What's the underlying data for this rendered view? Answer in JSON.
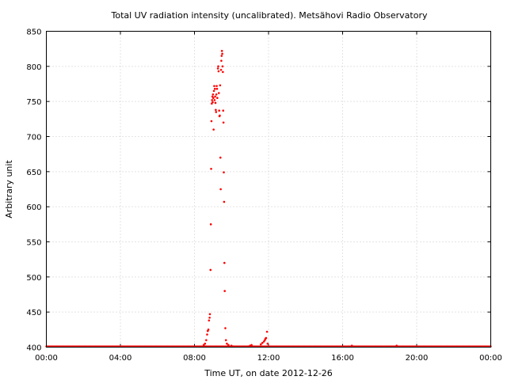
{
  "chart_data": {
    "type": "scatter",
    "title": "Total UV radiation intensity (uncalibrated). Metsähovi Radio Observatory",
    "xlabel": "Time UT, on date 2012-12-26",
    "ylabel": "Arbitrary unit",
    "xlim": [
      "00:00",
      "24:00"
    ],
    "ylim": [
      400,
      850
    ],
    "grid": true,
    "color": "#ff0000",
    "x_ticks": [
      "00:00",
      "04:00",
      "08:00",
      "12:00",
      "16:00",
      "20:00",
      "00:00"
    ],
    "y_ticks": [
      "400",
      "450",
      "500",
      "550",
      "600",
      "650",
      "700",
      "750",
      "800",
      "850"
    ],
    "series": [
      {
        "baseline_value": 401,
        "baseline_x_range": [
          "00:00",
          "24:00"
        ],
        "points": [
          [
            "08:30",
            403
          ],
          [
            "08:34",
            405
          ],
          [
            "08:38",
            410
          ],
          [
            "08:41",
            418
          ],
          [
            "08:43",
            423
          ],
          [
            "08:45",
            425
          ],
          [
            "08:47",
            438
          ],
          [
            "08:49",
            442
          ],
          [
            "08:50",
            447
          ],
          [
            "08:52",
            510
          ],
          [
            "08:53",
            575
          ],
          [
            "08:54",
            654
          ],
          [
            "08:55",
            722
          ],
          [
            "08:56",
            747
          ],
          [
            "08:57",
            752
          ],
          [
            "08:58",
            757
          ],
          [
            "08:59",
            749
          ],
          [
            "09:00",
            760
          ],
          [
            "09:01",
            755
          ],
          [
            "09:02",
            710
          ],
          [
            "09:03",
            765
          ],
          [
            "09:04",
            772
          ],
          [
            "09:05",
            752
          ],
          [
            "09:06",
            768
          ],
          [
            "09:07",
            757
          ],
          [
            "09:08",
            748
          ],
          [
            "09:09",
            738
          ],
          [
            "09:10",
            735
          ],
          [
            "09:11",
            760
          ],
          [
            "09:12",
            772
          ],
          [
            "09:13",
            768
          ],
          [
            "09:14",
            755
          ],
          [
            "09:16",
            797
          ],
          [
            "09:17",
            800
          ],
          [
            "09:18",
            793
          ],
          [
            "09:19",
            762
          ],
          [
            "09:20",
            737
          ],
          [
            "09:21",
            729
          ],
          [
            "09:22",
            730
          ],
          [
            "09:23",
            773
          ],
          [
            "09:24",
            670
          ],
          [
            "09:25",
            625
          ],
          [
            "09:26",
            795
          ],
          [
            "09:27",
            808
          ],
          [
            "09:28",
            815
          ],
          [
            "09:29",
            822
          ],
          [
            "09:30",
            818
          ],
          [
            "09:31",
            800
          ],
          [
            "09:32",
            792
          ],
          [
            "09:33",
            737
          ],
          [
            "09:34",
            720
          ],
          [
            "09:35",
            649
          ],
          [
            "09:36",
            607
          ],
          [
            "09:37",
            520
          ],
          [
            "09:38",
            480
          ],
          [
            "09:40",
            427
          ],
          [
            "09:42",
            410
          ],
          [
            "09:45",
            405
          ],
          [
            "09:50",
            403
          ],
          [
            "10:00",
            402
          ],
          [
            "11:00",
            402
          ],
          [
            "11:05",
            403
          ],
          [
            "11:35",
            404
          ],
          [
            "11:40",
            406
          ],
          [
            "11:45",
            408
          ],
          [
            "11:48",
            410
          ],
          [
            "11:50",
            412
          ],
          [
            "11:52",
            413
          ],
          [
            "11:55",
            422
          ],
          [
            "11:57",
            405
          ],
          [
            "16:30",
            402
          ],
          [
            "18:55",
            402
          ]
        ]
      }
    ]
  }
}
